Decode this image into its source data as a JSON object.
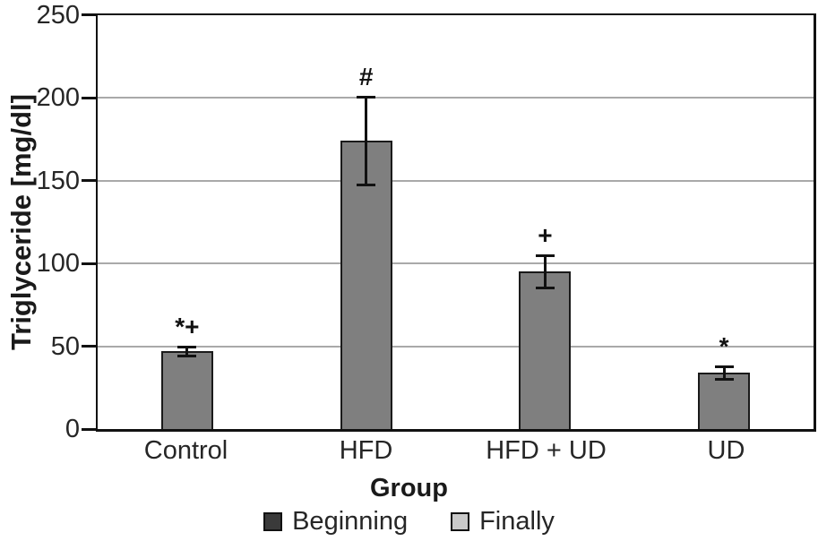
{
  "chart_data": {
    "type": "bar",
    "title": "",
    "xlabel": "Group",
    "ylabel": "Triglyceride [mg/dl]",
    "ylim": [
      0,
      250
    ],
    "yticks": [
      0,
      50,
      100,
      150,
      200,
      250
    ],
    "categories": [
      "Control",
      "HFD",
      "HFD + UD",
      "UD"
    ],
    "values": [
      47,
      174,
      95,
      34
    ],
    "errors": [
      3,
      27,
      10,
      4
    ],
    "annotations": [
      "*+",
      "#",
      "+",
      "*"
    ],
    "grid": "horizontal",
    "legend_position": "bottom",
    "legend": [
      {
        "label": "Beginning",
        "color": "#3a3a3a"
      },
      {
        "label": "Finally",
        "color": "#c9c9c9"
      }
    ],
    "bar_color": "#7f7f7f",
    "bar_border_color": "#1a1a1a",
    "grid_color": "#a9a9a9",
    "axis_color": "#111111"
  }
}
